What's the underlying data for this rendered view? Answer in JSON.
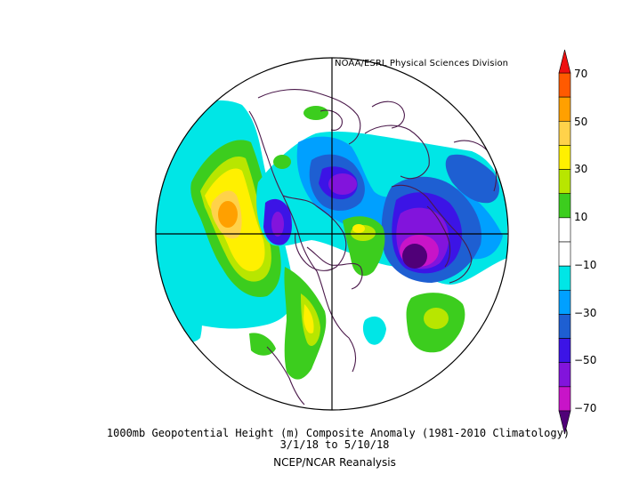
{
  "credit": "NOAA/ESRL Physical Sciences Division",
  "caption": {
    "title": "1000mb Geopotential Height (m) Composite Anomaly (1981-2010 Climatology)",
    "dates": "3/1/18  to 5/10/18",
    "source": "NCEP/NCAR Reanalysis"
  },
  "colorbar": {
    "labels": [
      "70",
      "50",
      "30",
      "10",
      "−10",
      "−30",
      "−50",
      "−70"
    ],
    "bins": [
      {
        "range": "> 70",
        "color": "#ee1010"
      },
      {
        "range": "60 to 70",
        "color": "#ff5a00"
      },
      {
        "range": "50 to 60",
        "color": "#ffa000"
      },
      {
        "range": "40 to 50",
        "color": "#ffd24a"
      },
      {
        "range": "30 to 40",
        "color": "#fff000"
      },
      {
        "range": "20 to 30",
        "color": "#b8e600"
      },
      {
        "range": "10 to 20",
        "color": "#3ccd1e"
      },
      {
        "range": "0 to 10",
        "color": "#ffffff"
      },
      {
        "range": "-10 to 0",
        "color": "#ffffff"
      },
      {
        "range": "-20 to -10",
        "color": "#00e6e6"
      },
      {
        "range": "-30 to -20",
        "color": "#00a0ff"
      },
      {
        "range": "-40 to -30",
        "color": "#1e5fd2"
      },
      {
        "range": "-50 to -40",
        "color": "#3c14e6"
      },
      {
        "range": "-60 to -50",
        "color": "#8214dc"
      },
      {
        "range": "-70 to -60",
        "color": "#c814c8"
      },
      {
        "range": "< -70",
        "color": "#500078"
      }
    ]
  },
  "colors": {
    "land_outline": "#4b1a4b",
    "grid": "#000000",
    "positive": "#3ccd1e",
    "negative": "#00e6e6"
  }
}
